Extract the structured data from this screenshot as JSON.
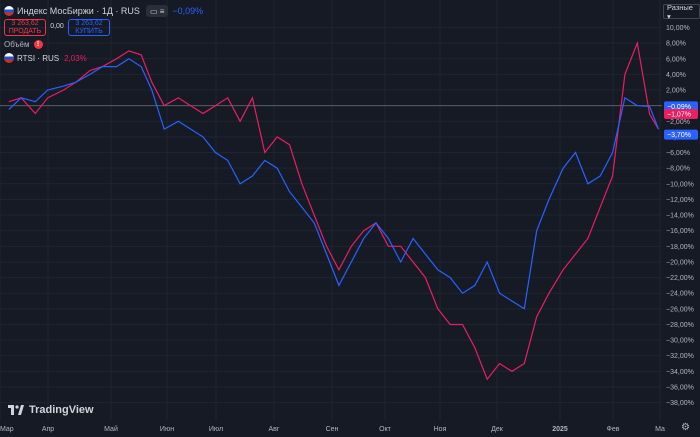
{
  "header": {
    "symbol": "Индекс МосБиржи · 1Д · RUS",
    "pill": "▭ ≡",
    "change": "−0,09%",
    "sell_price": "3 263,62",
    "sell_label": "ПРОДАТЬ",
    "spread": "0,00",
    "buy_price": "3 263,62",
    "buy_label": "КУПИТЬ",
    "volume_label": "Объём",
    "compare_symbol": "RTSI · RUS",
    "compare_change": "2,03%",
    "scale_button": "Разные ▾",
    "brand": "TradingView",
    "settings_icon": "gear-icon"
  },
  "colors": {
    "background": "#161a25",
    "imoex": "#2962ff",
    "rtsi": "#e91e63",
    "grid": "#1f2433",
    "baseline": "#575b66",
    "axis_text": "#b2b5be"
  },
  "chart_data": {
    "type": "line",
    "xlabel": "",
    "ylabel": "",
    "x_ticks": [
      "Мар",
      "Апр",
      "Май",
      "Июн",
      "Июл",
      "Авг",
      "Сен",
      "Окт",
      "Ноя",
      "Дек",
      "2025",
      "Фев",
      "Ма"
    ],
    "y_ticks": [
      "10,00%",
      "8,00%",
      "6,00%",
      "4,00%",
      "2,00%",
      "0,00%",
      "−2,00%",
      "−4,00%",
      "−6,00%",
      "−8,00%",
      "−10,00%",
      "−12,00%",
      "−14,00%",
      "−16,00%",
      "−18,00%",
      "−20,00%",
      "−22,00%",
      "−24,00%",
      "−26,00%",
      "−28,00%",
      "−30,00%",
      "−32,00%",
      "−34,00%",
      "−36,00%",
      "−38,00%"
    ],
    "ylim": [
      -39,
      11
    ],
    "grid": true,
    "legend": "top-left",
    "series": [
      {
        "name": "Индекс МосБиржи",
        "x": [
          "2024-02-29",
          "2024-03-07",
          "2024-03-15",
          "2024-03-22",
          "2024-03-31",
          "2024-04-07",
          "2024-04-15",
          "2024-04-22",
          "2024-04-30",
          "2024-05-07",
          "2024-05-14",
          "2024-05-20",
          "2024-05-27",
          "2024-06-04",
          "2024-06-11",
          "2024-06-18",
          "2024-06-25",
          "2024-07-02",
          "2024-07-09",
          "2024-07-16",
          "2024-07-23",
          "2024-07-30",
          "2024-08-06",
          "2024-08-13",
          "2024-08-20",
          "2024-08-27",
          "2024-09-03",
          "2024-09-10",
          "2024-09-17",
          "2024-09-24",
          "2024-10-01",
          "2024-10-08",
          "2024-10-15",
          "2024-10-22",
          "2024-10-29",
          "2024-11-05",
          "2024-11-12",
          "2024-11-19",
          "2024-11-26",
          "2024-12-03",
          "2024-12-10",
          "2024-12-17",
          "2024-12-24",
          "2024-12-31",
          "2025-01-08",
          "2025-01-15",
          "2025-01-22",
          "2025-01-29",
          "2025-02-05",
          "2025-02-12",
          "2025-02-19",
          "2025-02-26",
          "2025-03-03"
        ],
        "values": [
          -0.5,
          1,
          0.5,
          2,
          2.5,
          3,
          4,
          5,
          5,
          6,
          5,
          2,
          -3,
          -2,
          -3,
          -4,
          -6,
          -7,
          -10,
          -9,
          -7,
          -8,
          -11,
          -13,
          -15,
          -19,
          -23,
          -20,
          -17,
          -15,
          -17,
          -20,
          -17,
          -19,
          -21,
          -22,
          -24,
          -23,
          -20,
          -24,
          -25,
          -26,
          -16,
          -12,
          -8,
          -6,
          -10,
          -9,
          -6,
          1,
          0,
          -0.1,
          -3
        ]
      },
      {
        "name": "RTSI",
        "x": [
          "2024-02-29",
          "2024-03-07",
          "2024-03-15",
          "2024-03-22",
          "2024-03-31",
          "2024-04-07",
          "2024-04-15",
          "2024-04-22",
          "2024-04-30",
          "2024-05-07",
          "2024-05-14",
          "2024-05-20",
          "2024-05-27",
          "2024-06-04",
          "2024-06-11",
          "2024-06-18",
          "2024-06-25",
          "2024-07-02",
          "2024-07-09",
          "2024-07-16",
          "2024-07-23",
          "2024-07-30",
          "2024-08-06",
          "2024-08-13",
          "2024-08-20",
          "2024-08-27",
          "2024-09-03",
          "2024-09-10",
          "2024-09-17",
          "2024-09-24",
          "2024-10-01",
          "2024-10-08",
          "2024-10-15",
          "2024-10-22",
          "2024-10-29",
          "2024-11-05",
          "2024-11-12",
          "2024-11-19",
          "2024-11-26",
          "2024-12-03",
          "2024-12-10",
          "2024-12-17",
          "2024-12-24",
          "2024-12-31",
          "2025-01-08",
          "2025-01-15",
          "2025-01-22",
          "2025-01-29",
          "2025-02-05",
          "2025-02-12",
          "2025-02-19",
          "2025-02-26",
          "2025-03-03"
        ],
        "values": [
          0.5,
          1,
          -1,
          1,
          2,
          3,
          4.5,
          5,
          6,
          7,
          6.5,
          3,
          0,
          1,
          0,
          -1,
          0,
          1,
          -2,
          1,
          -6,
          -4,
          -5,
          -10,
          -14,
          -18,
          -21,
          -18,
          -16,
          -15,
          -18,
          -18,
          -20,
          -22,
          -26,
          -28,
          -28,
          -31,
          -35,
          -33,
          -34,
          -33,
          -27,
          -24,
          -21,
          -19,
          -17,
          -13,
          -9,
          4,
          8,
          -1.1,
          -3
        ]
      }
    ],
    "price_labels": [
      "−0,09%",
      "−1,07%",
      "−3,70%"
    ]
  }
}
